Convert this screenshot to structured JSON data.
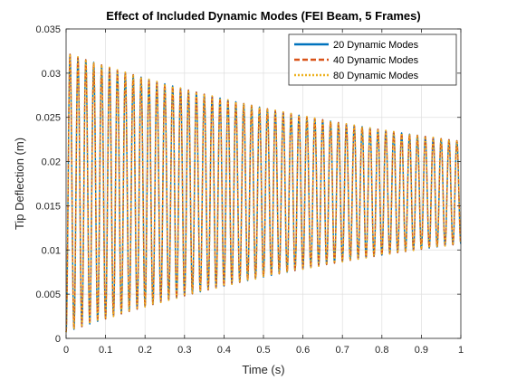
{
  "chart_data": {
    "type": "line",
    "title": "Effect of Included Dynamic Modes (FEI Beam, 5 Frames)",
    "xlabel": "Time (s)",
    "ylabel": "Tip Deflection (m)",
    "xlim": [
      0,
      1
    ],
    "ylim": [
      0,
      0.035
    ],
    "xticks": [
      0,
      0.1,
      0.2,
      0.3,
      0.4,
      0.5,
      0.6,
      0.7,
      0.8,
      0.9,
      1
    ],
    "xtick_labels": [
      "0",
      "0.1",
      "0.2",
      "0.3",
      "0.4",
      "0.5",
      "0.6",
      "0.7",
      "0.8",
      "0.9",
      "1"
    ],
    "yticks": [
      0,
      0.005,
      0.01,
      0.015,
      0.02,
      0.025,
      0.03,
      0.035
    ],
    "ytick_labels": [
      "0",
      "0.005",
      "0.01",
      "0.015",
      "0.02",
      "0.025",
      "0.03",
      "0.035"
    ],
    "grid": true,
    "legend_position": "top-right",
    "signal": {
      "equilibrium": 0.0165,
      "initial_amplitude": 0.0158,
      "final_amplitude": 0.0058,
      "oscillations_per_second": 50
    },
    "series": [
      {
        "name": "20 Dynamic Modes",
        "color": "#0072BD",
        "style": "solid"
      },
      {
        "name": "40 Dynamic Modes",
        "color": "#D95319",
        "style": "dashed"
      },
      {
        "name": "80 Dynamic Modes",
        "color": "#EDB120",
        "style": "dotted"
      }
    ]
  }
}
